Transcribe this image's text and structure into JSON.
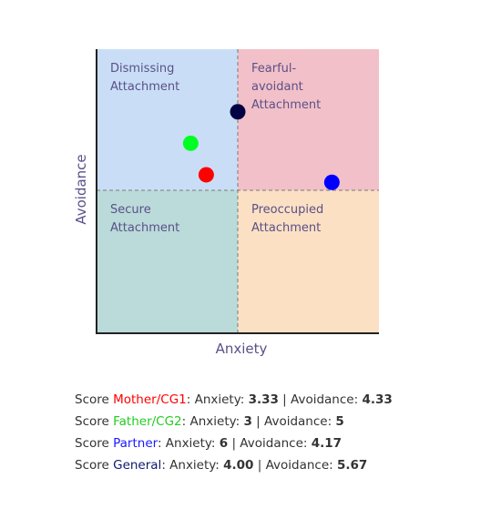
{
  "chart_data": {
    "type": "scatter",
    "title": "",
    "xlabel": "Anxiety",
    "ylabel": "Avoidance",
    "xlim": [
      1,
      7
    ],
    "ylim": [
      1,
      7
    ],
    "midpoint": {
      "x": 4,
      "y": 4
    },
    "quadrants": [
      {
        "id": "dismissing",
        "lines": [
          "Dismissing",
          "Attachment"
        ],
        "color": "#c9def6"
      },
      {
        "id": "fearful",
        "lines": [
          "Fearful-",
          "avoidant",
          "Attachment"
        ],
        "color": "#f2c0c8"
      },
      {
        "id": "secure",
        "lines": [
          "Secure",
          "Attachment"
        ],
        "color": "#badbd9"
      },
      {
        "id": "preoccupied",
        "lines": [
          "Preoccupied",
          "Attachment"
        ],
        "color": "#fbe0c3"
      }
    ],
    "points": [
      {
        "name": "Mother/CG1",
        "anxiety": 3.33,
        "avoidance": 4.33,
        "color": "#ff0000"
      },
      {
        "name": "Father/CG2",
        "anxiety": 3,
        "avoidance": 5,
        "color": "#00ff22"
      },
      {
        "name": "Partner",
        "anxiety": 6,
        "avoidance": 4.17,
        "color": "#0000ff"
      },
      {
        "name": "General",
        "anxiety": 4.0,
        "avoidance": 5.67,
        "color": "#000044"
      }
    ]
  },
  "scores": [
    {
      "prefix": "Score ",
      "name": "Mother/CG1",
      "color": "#ff0000",
      "anxiety_label": ": Anxiety: ",
      "anxiety": "3.33",
      "sep": " | Avoidance: ",
      "avoidance": "4.33"
    },
    {
      "prefix": "Score ",
      "name": "Father/CG2",
      "color": "#22cc22",
      "anxiety_label": ": Anxiety: ",
      "anxiety": "3",
      "sep": " | Avoidance: ",
      "avoidance": "5"
    },
    {
      "prefix": "Score ",
      "name": "Partner",
      "color": "#1a1aff",
      "anxiety_label": ": Anxiety: ",
      "anxiety": "6",
      "sep": " | Avoidance: ",
      "avoidance": "4.17"
    },
    {
      "prefix": "Score ",
      "name": "General",
      "color": "#0c1a6e",
      "anxiety_label": ": Anxiety: ",
      "anxiety": "4.00",
      "sep": " | Avoidance: ",
      "avoidance": "5.67"
    }
  ]
}
